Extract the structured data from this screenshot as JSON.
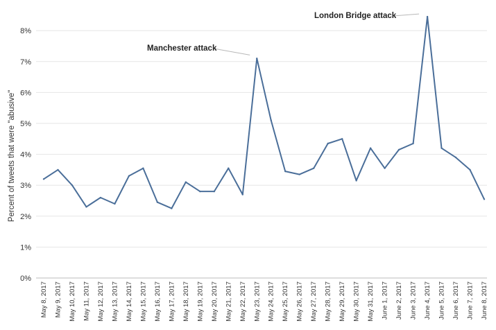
{
  "chart_data": {
    "type": "line",
    "title": "",
    "xlabel": "",
    "ylabel": "Percent of tweets that were \"abusive\"",
    "ylim": [
      0,
      8.8
    ],
    "yticks": [
      0,
      1,
      2,
      3,
      4,
      5,
      6,
      7,
      8
    ],
    "ytick_labels": [
      "0%",
      "1%",
      "2%",
      "3%",
      "4%",
      "5%",
      "6%",
      "7%",
      "8%"
    ],
    "grid": true,
    "legend": "none",
    "line_color": "#4a6e99",
    "categories": [
      "May 8, 2017",
      "May 9, 2017",
      "May 10, 2017",
      "May 11, 2017",
      "May 12, 2017",
      "May 13, 2017",
      "May 14, 2017",
      "May 15, 2017",
      "May 16, 2017",
      "May 17, 2017",
      "May 18, 2017",
      "May 19, 2017",
      "May 20, 2017",
      "May 21, 2017",
      "May 22, 2017",
      "May 23, 2017",
      "May 24, 2017",
      "May 25, 2017",
      "May 26, 2017",
      "May 27, 2017",
      "May 28, 2017",
      "May 29, 2017",
      "May 30, 2017",
      "May 31, 2017",
      "June 1, 2017",
      "June 2, 2017",
      "June 3, 2017",
      "June 4, 2017",
      "June 5, 2017",
      "June 6, 2017",
      "June 7, 2017",
      "June 8, 2017"
    ],
    "series": [
      {
        "values": [
          3.2,
          3.5,
          3.0,
          2.3,
          2.6,
          2.4,
          3.3,
          3.55,
          2.45,
          2.25,
          3.1,
          2.8,
          2.8,
          3.55,
          2.7,
          7.1,
          5.1,
          3.45,
          3.35,
          3.55,
          4.35,
          4.5,
          3.15,
          4.2,
          3.55,
          4.15,
          4.35,
          8.45,
          4.2,
          3.9,
          3.5,
          2.55
        ]
      }
    ],
    "annotations": [
      {
        "text": "Manchester attack",
        "category": "May 23, 2017",
        "value": 7.1
      },
      {
        "text": "London Bridge attack",
        "category": "June 4, 2017",
        "value": 8.45
      }
    ]
  }
}
